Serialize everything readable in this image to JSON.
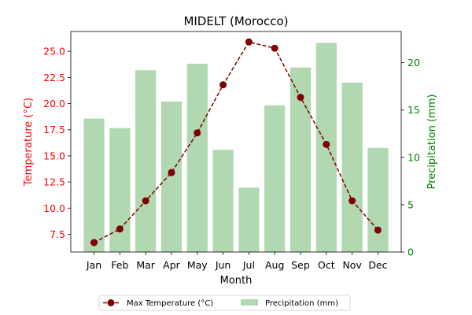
{
  "chart_data": {
    "type": "bar+line",
    "title": "MIDELT (Morocco)",
    "xlabel": "Month",
    "categories": [
      "Jan",
      "Feb",
      "Mar",
      "Apr",
      "May",
      "Jun",
      "Jul",
      "Aug",
      "Sep",
      "Oct",
      "Nov",
      "Dec"
    ],
    "y_left": {
      "label": "Temperature (°C)",
      "color": "#ff0000",
      "range": [
        5.8,
        26.9
      ],
      "ticks": [
        "7.5",
        "10.0",
        "12.5",
        "15.0",
        "17.5",
        "20.0",
        "22.5",
        "25.0"
      ]
    },
    "y_right": {
      "label": "Precipitation (mm)",
      "color": "#008000",
      "range": [
        0,
        23.3
      ],
      "ticks": [
        "0",
        "5",
        "10",
        "15",
        "20"
      ]
    },
    "series": [
      {
        "name": "Max Temperature (°C)",
        "type": "line",
        "axis": "left",
        "color": "#800000",
        "style": "dashed with circle markers",
        "values": [
          6.7,
          8.0,
          10.7,
          13.4,
          17.2,
          21.8,
          25.9,
          25.3,
          20.6,
          16.1,
          10.7,
          7.9
        ]
      },
      {
        "name": "Precipitation (mm)",
        "type": "bar",
        "axis": "right",
        "color": "#b2d8b2",
        "values": [
          14.1,
          13.1,
          19.2,
          15.9,
          19.9,
          10.8,
          6.8,
          15.5,
          19.5,
          22.1,
          17.9,
          11.0
        ]
      }
    ],
    "legend_position": "bottom-center, outside plot"
  }
}
